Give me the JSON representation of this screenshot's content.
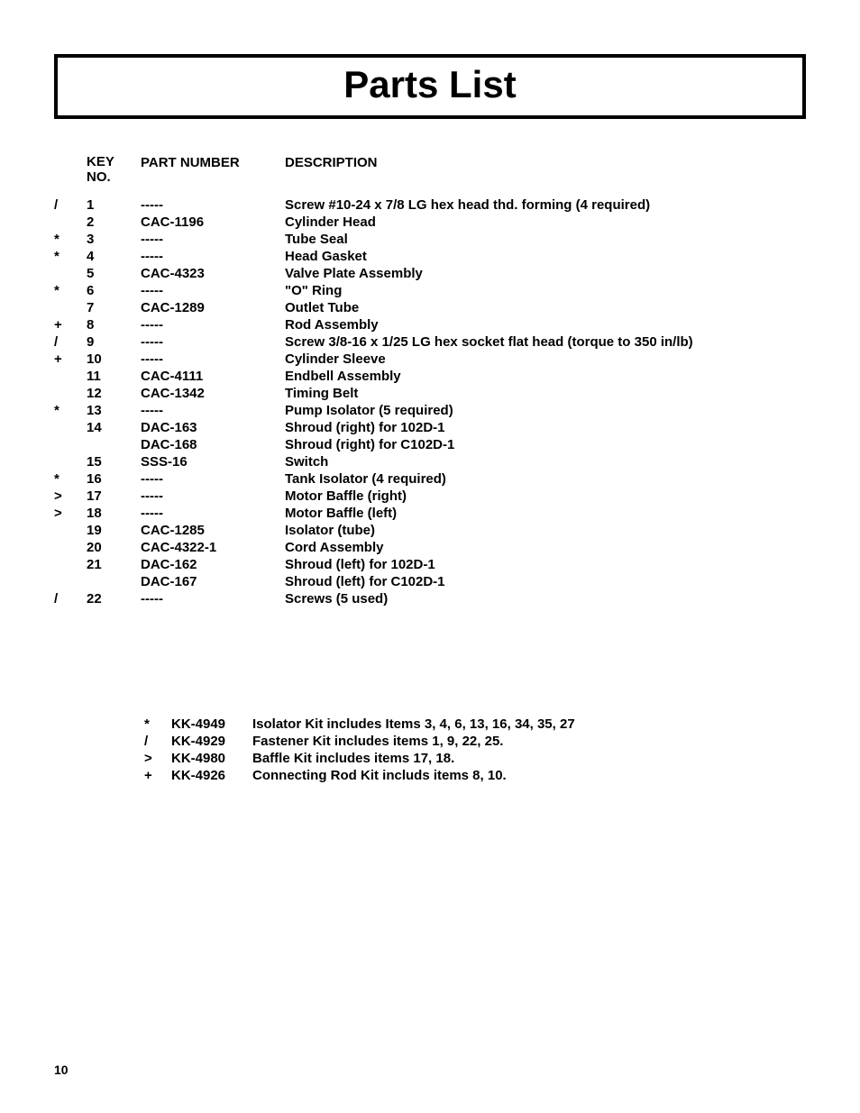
{
  "title": "Parts List",
  "headers": {
    "key": "KEY\nNO.",
    "part": "PART NUMBER",
    "desc": "DESCRIPTION"
  },
  "rows": [
    {
      "sym": "/",
      "key": "1",
      "part": "-----",
      "desc": "Screw #10-24 x 7/8 LG hex head thd. forming (4 required)"
    },
    {
      "sym": "",
      "key": "2",
      "part": "CAC-1196",
      "desc": "Cylinder Head"
    },
    {
      "sym": "*",
      "key": "3",
      "part": "-----",
      "desc": "Tube Seal"
    },
    {
      "sym": "*",
      "key": "4",
      "part": "-----",
      "desc": "Head Gasket"
    },
    {
      "sym": "",
      "key": "5",
      "part": "CAC-4323",
      "desc": "Valve Plate Assembly"
    },
    {
      "sym": "*",
      "key": "6",
      "part": "-----",
      "desc": "\"O\" Ring"
    },
    {
      "sym": "",
      "key": "7",
      "part": "CAC-1289",
      "desc": "Outlet Tube"
    },
    {
      "sym": "+",
      "key": "8",
      "part": "-----",
      "desc": "Rod Assembly"
    },
    {
      "sym": "/",
      "key": "9",
      "part": "-----",
      "desc": "Screw 3/8-16 x 1/25 LG hex socket flat head (torque to 350 in/lb)"
    },
    {
      "sym": "+",
      "key": "10",
      "part": "-----",
      "desc": "Cylinder Sleeve"
    },
    {
      "sym": "",
      "key": "11",
      "part": "CAC-4111",
      "desc": "Endbell Assembly"
    },
    {
      "sym": "",
      "key": "12",
      "part": "CAC-1342",
      "desc": "Timing Belt"
    },
    {
      "sym": "*",
      "key": "13",
      "part": "-----",
      "desc": "Pump Isolator (5 required)"
    },
    {
      "sym": "",
      "key": "14",
      "part": "DAC-163",
      "desc": "Shroud (right) for 102D-1"
    },
    {
      "sym": "",
      "key": "",
      "part": "DAC-168",
      "desc": "Shroud (right) for C102D-1"
    },
    {
      "sym": "",
      "key": "15",
      "part": "SSS-16",
      "desc": "Switch"
    },
    {
      "sym": "*",
      "key": "16",
      "part": "-----",
      "desc": "Tank Isolator (4 required)"
    },
    {
      "sym": ">",
      "key": "17",
      "part": "-----",
      "desc": "Motor Baffle (right)"
    },
    {
      "sym": ">",
      "key": "18",
      "part": "-----",
      "desc": "Motor Baffle (left)"
    },
    {
      "sym": "",
      "key": "19",
      "part": "CAC-1285",
      "desc": "Isolator (tube)"
    },
    {
      "sym": "",
      "key": "20",
      "part": "CAC-4322-1",
      "desc": "Cord Assembly"
    },
    {
      "sym": "",
      "key": "21",
      "part": "DAC-162",
      "desc": "Shroud (left) for 102D-1"
    },
    {
      "sym": "",
      "key": "",
      "part": "DAC-167",
      "desc": "Shroud (left) for C102D-1"
    },
    {
      "sym": "/",
      "key": "22",
      "part": "-----",
      "desc": "Screws (5 used)"
    }
  ],
  "kits": [
    {
      "sym": "*",
      "num": "KK-4949",
      "desc": "Isolator Kit includes Items 3, 4, 6, 13, 16, 34, 35, 27"
    },
    {
      "sym": "/",
      "num": "KK-4929",
      "desc": "Fastener Kit includes items 1, 9, 22, 25."
    },
    {
      "sym": ">",
      "num": "KK-4980",
      "desc": "Baffle Kit includes items 17, 18."
    },
    {
      "sym": "+",
      "num": "KK-4926",
      "desc": "Connecting Rod Kit includs items 8, 10."
    }
  ],
  "pageNumber": "10"
}
